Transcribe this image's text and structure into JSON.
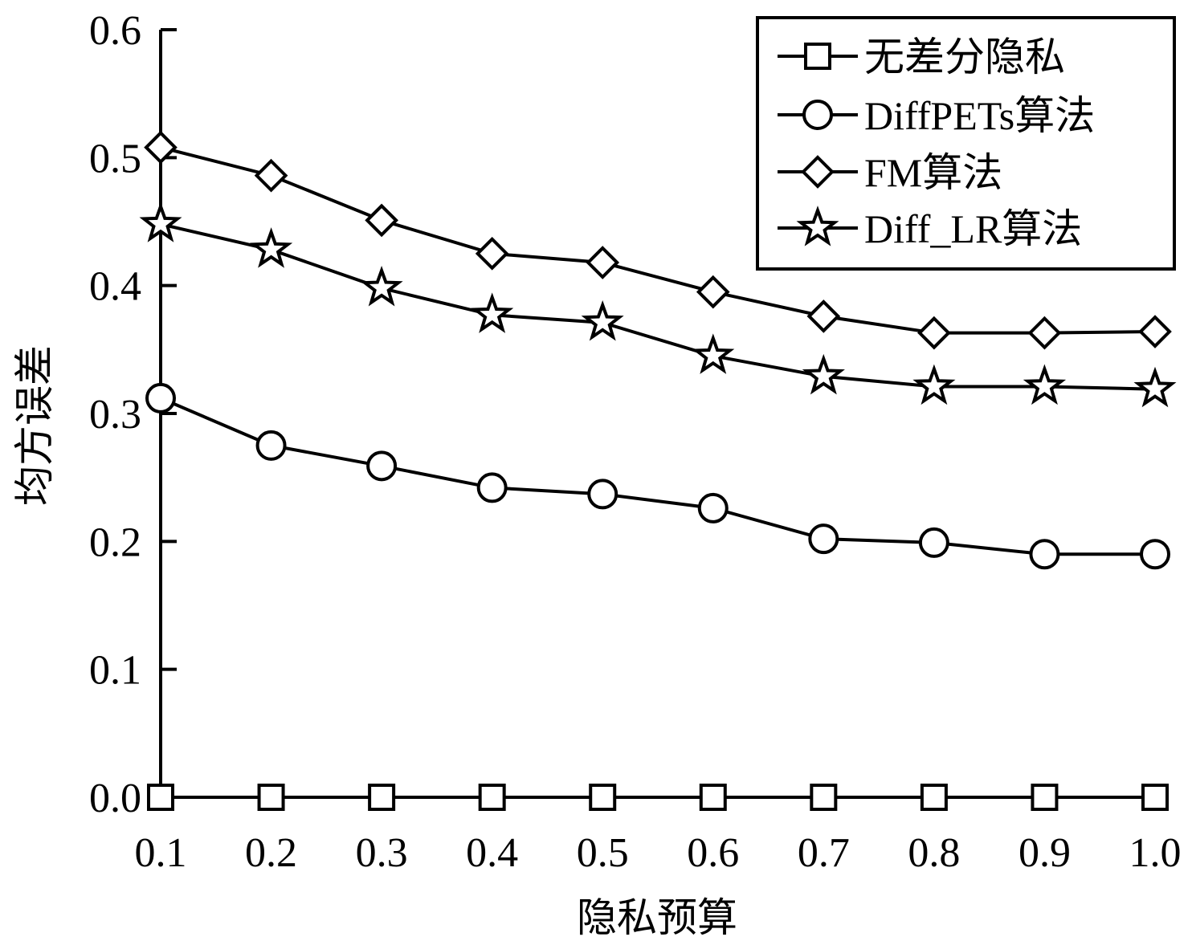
{
  "chart_data": {
    "type": "line",
    "xlabel": "隐私预算",
    "ylabel": "均方误差",
    "x": [
      0.1,
      0.2,
      0.3,
      0.4,
      0.5,
      0.6,
      0.7,
      0.8,
      0.9,
      1.0
    ],
    "x_tick_labels": [
      "0.1",
      "0.2",
      "0.3",
      "0.4",
      "0.5",
      "0.6",
      "0.7",
      "0.8",
      "0.9",
      "1.0"
    ],
    "y_ticks": [
      0.0,
      0.1,
      0.2,
      0.3,
      0.4,
      0.5,
      0.6
    ],
    "y_tick_labels": [
      "0.0",
      "0.1",
      "0.2",
      "0.3",
      "0.4",
      "0.5",
      "0.6"
    ],
    "xlim": [
      0.1,
      1.0
    ],
    "ylim": [
      0.0,
      0.6
    ],
    "grid": false,
    "legend_position": "top-right",
    "series": [
      {
        "name": "无差分隐私",
        "marker": "square",
        "values": [
          0.0,
          0.0,
          0.0,
          0.0,
          0.0,
          0.0,
          0.0,
          0.0,
          0.0,
          0.0
        ]
      },
      {
        "name": "DiffPETs算法",
        "marker": "circle",
        "values": [
          0.312,
          0.275,
          0.259,
          0.242,
          0.237,
          0.226,
          0.202,
          0.199,
          0.19,
          0.19
        ]
      },
      {
        "name": "FM算法",
        "marker": "diamond",
        "values": [
          0.508,
          0.486,
          0.451,
          0.425,
          0.418,
          0.395,
          0.376,
          0.363,
          0.363,
          0.364
        ]
      },
      {
        "name": "Diff_LR算法",
        "marker": "star",
        "values": [
          0.448,
          0.428,
          0.398,
          0.377,
          0.371,
          0.345,
          0.329,
          0.321,
          0.321,
          0.319
        ]
      }
    ]
  }
}
